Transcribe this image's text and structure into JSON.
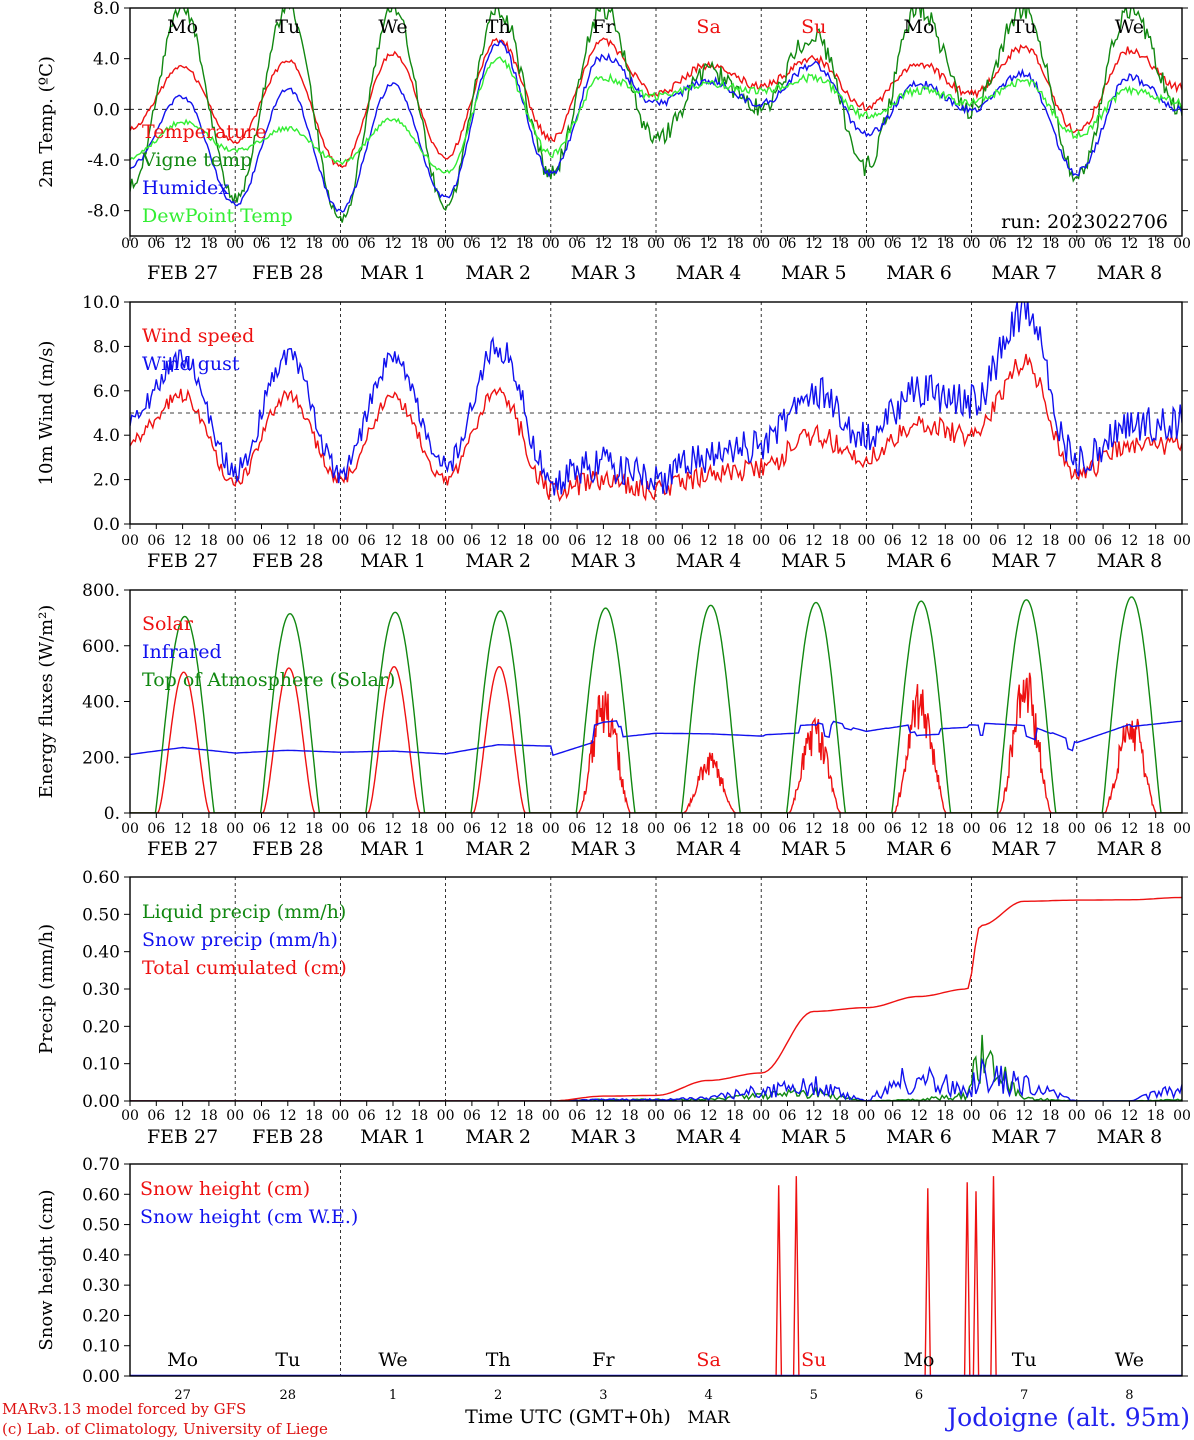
{
  "run_label": "run: 2023022706",
  "station": "Jodoigne (alt. 95m)",
  "credits": [
    "MARv3.13 model forced by GFS",
    "(c) Lab. of Climatology, University of Liege"
  ],
  "time_axis_label": "Time UTC (GMT+0h)",
  "month_label": "MAR",
  "hour_ticks": [
    "00",
    "06",
    "12",
    "18"
  ],
  "date_labels": [
    "FEB 27",
    "FEB 28",
    "MAR  1",
    "MAR  2",
    "MAR  3",
    "MAR  4",
    "MAR  5",
    "MAR  6",
    "MAR  7",
    "MAR  8"
  ],
  "day_numbers": [
    "27",
    "28",
    "1",
    "2",
    "3",
    "4",
    "5",
    "6",
    "7",
    "8"
  ],
  "weekdays": [
    {
      "label": "Mo",
      "weekend": false
    },
    {
      "label": "Tu",
      "weekend": false
    },
    {
      "label": "We",
      "weekend": false
    },
    {
      "label": "Th",
      "weekend": false
    },
    {
      "label": "Fr",
      "weekend": false
    },
    {
      "label": "Sa",
      "weekend": true
    },
    {
      "label": "Su",
      "weekend": true
    },
    {
      "label": "Mo",
      "weekend": false
    },
    {
      "label": "Tu",
      "weekend": false
    },
    {
      "label": "We",
      "weekend": false
    }
  ],
  "colors": {
    "red": "#ee1111",
    "green": "#118811",
    "blue": "#1111ee",
    "light_green": "#33ee33",
    "weekend": "#ee1111",
    "station": "#2222ee",
    "credits": "#dd1111"
  },
  "chart_data": [
    {
      "type": "line",
      "ylabel": "2m Temp. (ºC)",
      "ylim": [
        -10,
        8
      ],
      "yticks": [
        8,
        4,
        0,
        -4,
        -8
      ],
      "ytick_labels": [
        "8.0",
        "4.0",
        "0.0",
        "-4.0",
        "-8.0"
      ],
      "reference_line": 0,
      "x": [
        "02-27 00",
        "02-27 12",
        "02-28 00",
        "02-28 12",
        "03-01 00",
        "03-01 12",
        "03-02 00",
        "03-02 12",
        "03-03 00",
        "03-03 12",
        "03-04 00",
        "03-04 12",
        "03-05 00",
        "03-05 12",
        "03-06 00",
        "03-06 12",
        "03-07 00",
        "03-07 12",
        "03-08 00",
        "03-08 12",
        "03-09 00"
      ],
      "series": [
        {
          "name": "Temperature",
          "color": "#ee1111",
          "values": [
            -1.5,
            3.3,
            -2.5,
            3.8,
            -4.5,
            4.4,
            -3.8,
            5.5,
            -2.3,
            5.3,
            1.2,
            3.5,
            1.8,
            4.0,
            0.2,
            3.6,
            1.2,
            4.9,
            -1.7,
            4.7,
            1.7
          ]
        },
        {
          "name": "Vigne temp",
          "color": "#118811",
          "values": [
            -6.0,
            8.0,
            -7.0,
            8.0,
            -8.7,
            8.0,
            -7.5,
            8.0,
            -5.0,
            8.0,
            -2.5,
            3.0,
            0.0,
            6.0,
            -4.5,
            8.0,
            0.0,
            8.0,
            -5.2,
            8.0,
            0.0
          ]
        },
        {
          "name": "Humidex",
          "color": "#1111ee",
          "values": [
            -4.5,
            1.0,
            -7.5,
            1.6,
            -8.0,
            2.0,
            -7.0,
            5.2,
            -5.0,
            4.2,
            0.5,
            2.2,
            0.5,
            3.5,
            -2.0,
            2.0,
            0.0,
            2.8,
            -5.0,
            2.5,
            0.0
          ]
        },
        {
          "name": "DewPoint Temp",
          "color": "#33ee33",
          "values": [
            -3.8,
            -1.0,
            -3.3,
            -1.5,
            -4.2,
            -0.8,
            -5.0,
            4.0,
            -3.5,
            2.5,
            1.0,
            2.0,
            1.5,
            2.5,
            -0.5,
            1.5,
            0.5,
            2.2,
            -2.0,
            1.5,
            0.5
          ]
        }
      ]
    },
    {
      "type": "line",
      "ylabel": "10m Wind (m/s)",
      "ylim": [
        0,
        10
      ],
      "yticks": [
        0,
        2,
        4,
        6,
        8,
        10
      ],
      "ytick_labels": [
        "0.0",
        "2.0",
        "4.0",
        "6.0",
        "8.0",
        "10.0"
      ],
      "reference_line": 5,
      "x": [
        "02-27 00",
        "02-27 12",
        "02-28 00",
        "02-28 12",
        "03-01 00",
        "03-01 12",
        "03-02 00",
        "03-02 12",
        "03-03 00",
        "03-03 12",
        "03-04 00",
        "03-04 12",
        "03-05 00",
        "03-05 12",
        "03-06 00",
        "03-06 12",
        "03-07 00",
        "03-07 12",
        "03-08 00",
        "03-08 12",
        "03-09 00"
      ],
      "series": [
        {
          "name": "Wind speed",
          "color": "#ee1111",
          "values": [
            3.8,
            5.8,
            1.9,
            5.8,
            2.0,
            5.7,
            2.0,
            6.0,
            1.5,
            2.0,
            1.5,
            2.2,
            2.5,
            4.0,
            3.0,
            4.5,
            4.0,
            7.2,
            2.2,
            3.5,
            3.6
          ]
        },
        {
          "name": "Wind gust",
          "color": "#1111ee",
          "values": [
            4.9,
            7.5,
            2.4,
            7.6,
            2.3,
            7.5,
            2.6,
            8.0,
            2.0,
            2.7,
            2.0,
            3.0,
            3.5,
            6.0,
            4.0,
            6.0,
            5.5,
            9.5,
            2.8,
            4.5,
            4.6
          ]
        }
      ]
    },
    {
      "type": "line",
      "ylabel": "Energy fluxes (W/m²)",
      "ylim": [
        0,
        800
      ],
      "yticks": [
        0,
        200,
        400,
        600,
        800
      ],
      "ytick_labels": [
        "0.",
        "200.",
        "400.",
        "600.",
        "800."
      ],
      "x": [
        "02-27 00",
        "02-27 12",
        "02-28 00",
        "02-28 12",
        "03-01 00",
        "03-01 12",
        "03-02 00",
        "03-02 12",
        "03-03 00",
        "03-03 12",
        "03-04 00",
        "03-04 12",
        "03-05 00",
        "03-05 12",
        "03-06 00",
        "03-06 12",
        "03-07 00",
        "03-07 12",
        "03-08 00",
        "03-08 12",
        "03-09 00"
      ],
      "series": [
        {
          "name": "Solar",
          "color": "#ee1111",
          "daily_peak": [
            505,
            520,
            525,
            525,
            465,
            220,
            350,
            490,
            540,
            390
          ]
        },
        {
          "name": "Infrared",
          "color": "#1111ee",
          "values": [
            210,
            235,
            215,
            225,
            218,
            222,
            212,
            245,
            240,
            300,
            320,
            318,
            310,
            320,
            270,
            300,
            310,
            300,
            225,
            290,
            310
          ]
        },
        {
          "name": "Top of Atmosphere (Solar)",
          "color": "#118811",
          "daily_peak": [
            705,
            715,
            720,
            725,
            735,
            745,
            755,
            760,
            765,
            775
          ]
        }
      ]
    },
    {
      "type": "line",
      "ylabel": "Precip (mm/h)",
      "ylim": [
        0,
        0.6
      ],
      "yticks": [
        0,
        0.1,
        0.2,
        0.3,
        0.4,
        0.5,
        0.6
      ],
      "ytick_labels": [
        "0.00",
        "0.10",
        "0.20",
        "0.30",
        "0.40",
        "0.50",
        "0.60"
      ],
      "x": [
        "02-27 00",
        "02-28 00",
        "03-01 00",
        "03-02 00",
        "03-03 00",
        "03-03 12",
        "03-04 00",
        "03-04 12",
        "03-05 00",
        "03-05 12",
        "03-06 00",
        "03-06 12",
        "03-06 23",
        "03-07 02",
        "03-07 12",
        "03-08 00",
        "03-08 12",
        "03-09 00"
      ],
      "series": [
        {
          "name": "Liquid precip (mm/h)",
          "color": "#118811",
          "values": [
            0,
            0,
            0,
            0,
            0,
            0.005,
            0.005,
            0.005,
            0.02,
            0.03,
            0,
            0.005,
            0.02,
            0.17,
            0.01,
            0,
            0,
            0.005
          ]
        },
        {
          "name": "Snow precip (mm/h)",
          "color": "#1111ee",
          "values": [
            0,
            0,
            0,
            0,
            0,
            0.005,
            0.005,
            0.01,
            0.04,
            0.06,
            0,
            0.11,
            0.03,
            0.1,
            0.06,
            0,
            0,
            0.05
          ]
        },
        {
          "name": "Total cumulated (cm)",
          "color": "#ee1111",
          "values": [
            0,
            0,
            0,
            0,
            0,
            0.013,
            0.015,
            0.055,
            0.075,
            0.24,
            0.25,
            0.28,
            0.3,
            0.47,
            0.535,
            0.538,
            0.539,
            0.545
          ]
        }
      ]
    },
    {
      "type": "line",
      "ylabel": "Snow height (cm)",
      "ylim": [
        0,
        0.7
      ],
      "yticks": [
        0,
        0.1,
        0.2,
        0.3,
        0.4,
        0.5,
        0.6,
        0.7
      ],
      "ytick_labels": [
        "0.00",
        "0.10",
        "0.20",
        "0.30",
        "0.40",
        "0.50",
        "0.60",
        "0.70"
      ],
      "series": [
        {
          "name": "Snow height (cm)",
          "color": "#ee1111",
          "spikes": [
            {
              "t": "03-05 04",
              "value": 0.63
            },
            {
              "t": "03-05 08",
              "value": 0.66
            },
            {
              "t": "03-06 14",
              "value": 0.62
            },
            {
              "t": "03-06 23",
              "value": 0.64
            },
            {
              "t": "03-07 01",
              "value": 0.61
            },
            {
              "t": "03-07 05",
              "value": 0.66
            }
          ]
        },
        {
          "name": "Snow height (cm W.E.)",
          "color": "#1111ee",
          "values": [
            0,
            0
          ]
        }
      ]
    }
  ]
}
